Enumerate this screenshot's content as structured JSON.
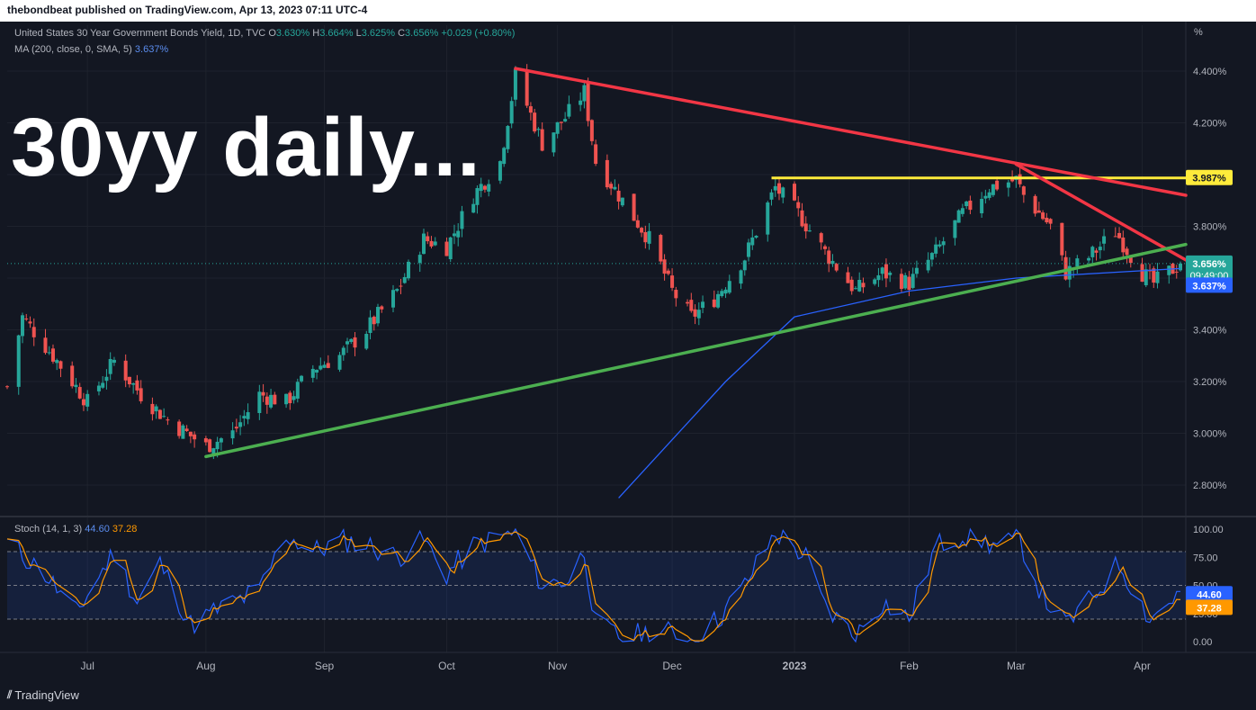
{
  "header": {
    "published_text": "thebondbeat published on TradingView.com, Apr 13, 2023 07:11 UTC-4"
  },
  "footer": {
    "brand": "TradingView"
  },
  "title_overlay": "30yy daily...",
  "legend": {
    "symbol": "United States 30 Year Government Bonds Yield, 1D, TVC",
    "open_label": "O",
    "open": "3.630%",
    "high_label": "H",
    "high": "3.664%",
    "low_label": "L",
    "low": "3.625%",
    "close_label": "C",
    "close": "3.656%",
    "change": "+0.029 (+0.80%)",
    "ma_label": "MA (200, close, 0, SMA, 5)",
    "ma_value": "3.637%",
    "stoch_label": "Stoch (14, 1, 3)",
    "stoch_k": "44.60",
    "stoch_d": "37.28"
  },
  "axis": {
    "unit": "%",
    "price_ticks": [
      "4.400%",
      "4.200%",
      "4.000%",
      "3.800%",
      "3.600%",
      "3.400%",
      "3.200%",
      "3.000%",
      "2.800%"
    ],
    "stoch_ticks": [
      "100.00",
      "75.00",
      "50.00",
      "25.00",
      "0.00"
    ],
    "month_labels": [
      "Jul",
      "Aug",
      "Sep",
      "Oct",
      "Nov",
      "Dec",
      "2023",
      "Feb",
      "Mar",
      "Apr"
    ]
  },
  "badges": {
    "resistance": "3.987%",
    "last_price": "3.656%",
    "countdown": "09:49:00",
    "ma": "3.637%",
    "stoch_k": "44.60",
    "stoch_d": "37.28"
  },
  "colors": {
    "background": "#131722",
    "up": "#26a69a",
    "down": "#ef5350",
    "ma": "#2962ff",
    "resistance_line": "#ffeb3b",
    "downtrend_line": "#f23645",
    "uptrend_line": "#4caf50",
    "stoch_k": "#2962ff",
    "stoch_d": "#ff9800"
  },
  "chart_data": [
    {
      "type": "candlestick",
      "title": "United States 30 Year Government Bonds Yield, 1D, TVC",
      "ylim": [
        2.75,
        4.5
      ],
      "y_unit": "%",
      "x_range": [
        "2022-06-10",
        "2023-04-13"
      ],
      "month_starts": [
        "2022-07-01",
        "2022-08-01",
        "2022-09-01",
        "2022-10-03",
        "2022-11-01",
        "2022-12-01",
        "2023-01-02",
        "2023-02-01",
        "2023-03-01",
        "2023-04-03"
      ],
      "path_anchors": [
        [
          "2022-06-10",
          3.18
        ],
        [
          "2022-06-14",
          3.45
        ],
        [
          "2022-06-22",
          3.3
        ],
        [
          "2022-07-01",
          3.12
        ],
        [
          "2022-07-08",
          3.28
        ],
        [
          "2022-07-15",
          3.15
        ],
        [
          "2022-07-22",
          3.05
        ],
        [
          "2022-07-29",
          2.98
        ],
        [
          "2022-08-01",
          2.95
        ],
        [
          "2022-08-08",
          3.0
        ],
        [
          "2022-08-15",
          3.15
        ],
        [
          "2022-08-22",
          3.12
        ],
        [
          "2022-08-29",
          3.25
        ],
        [
          "2022-09-05",
          3.3
        ],
        [
          "2022-09-12",
          3.4
        ],
        [
          "2022-09-20",
          3.55
        ],
        [
          "2022-09-27",
          3.75
        ],
        [
          "2022-10-03",
          3.72
        ],
        [
          "2022-10-10",
          3.92
        ],
        [
          "2022-10-17",
          4.05
        ],
        [
          "2022-10-21",
          4.38
        ],
        [
          "2022-10-28",
          4.12
        ],
        [
          "2022-11-03",
          4.22
        ],
        [
          "2022-11-08",
          4.32
        ],
        [
          "2022-11-11",
          4.05
        ],
        [
          "2022-11-18",
          3.9
        ],
        [
          "2022-11-25",
          3.75
        ],
        [
          "2022-12-01",
          3.55
        ],
        [
          "2022-12-06",
          3.45
        ],
        [
          "2022-12-12",
          3.52
        ],
        [
          "2022-12-20",
          3.68
        ],
        [
          "2022-12-28",
          3.95
        ],
        [
          "2023-01-03",
          3.85
        ],
        [
          "2023-01-10",
          3.7
        ],
        [
          "2023-01-18",
          3.55
        ],
        [
          "2023-01-25",
          3.62
        ],
        [
          "2023-02-01",
          3.58
        ],
        [
          "2023-02-08",
          3.7
        ],
        [
          "2023-02-15",
          3.85
        ],
        [
          "2023-02-22",
          3.95
        ],
        [
          "2023-03-01",
          3.98
        ],
        [
          "2023-03-03",
          3.92
        ],
        [
          "2023-03-10",
          3.8
        ],
        [
          "2023-03-14",
          3.62
        ],
        [
          "2023-03-20",
          3.68
        ],
        [
          "2023-03-27",
          3.78
        ],
        [
          "2023-04-03",
          3.62
        ],
        [
          "2023-04-06",
          3.58
        ],
        [
          "2023-04-13",
          3.656
        ]
      ],
      "last": {
        "open": 3.63,
        "high": 3.664,
        "low": 3.625,
        "close": 3.656,
        "change": 0.029,
        "change_pct": 0.8
      },
      "moving_average": {
        "name": "MA (200, close, 0, SMA, 5)",
        "anchors": [
          [
            "2022-11-17",
            2.75
          ],
          [
            "2022-12-15",
            3.2
          ],
          [
            "2023-01-02",
            3.45
          ],
          [
            "2023-02-01",
            3.55
          ],
          [
            "2023-03-01",
            3.6
          ],
          [
            "2023-04-13",
            3.637
          ]
        ],
        "last": 3.637
      },
      "annotations": [
        {
          "kind": "hline",
          "color": "#ffeb3b",
          "y": 3.987,
          "from": "2022-12-27",
          "to": "2023-03-06"
        },
        {
          "kind": "trendline",
          "color": "#f23645",
          "points": [
            [
              "2022-10-21",
              4.41
            ],
            [
              "2023-04-13",
              3.92
            ]
          ]
        },
        {
          "kind": "trendline",
          "color": "#f23645",
          "points": [
            [
              "2023-03-01",
              4.04
            ],
            [
              "2023-04-13",
              3.67
            ]
          ]
        },
        {
          "kind": "trendline",
          "color": "#4caf50",
          "points": [
            [
              "2022-08-01",
              2.91
            ],
            [
              "2023-04-13",
              3.73
            ]
          ]
        }
      ]
    },
    {
      "type": "line",
      "title": "Stoch (14, 1, 3)",
      "ylim": [
        0,
        100
      ],
      "band": [
        20,
        80
      ],
      "midline": 50,
      "k_anchors": [
        [
          "2022-06-10",
          88
        ],
        [
          "2022-06-20",
          60
        ],
        [
          "2022-06-28",
          25
        ],
        [
          "2022-07-08",
          80
        ],
        [
          "2022-07-14",
          35
        ],
        [
          "2022-07-20",
          70
        ],
        [
          "2022-07-28",
          15
        ],
        [
          "2022-08-05",
          30
        ],
        [
          "2022-08-15",
          45
        ],
        [
          "2022-08-22",
          95
        ],
        [
          "2022-08-29",
          80
        ],
        [
          "2022-09-06",
          90
        ],
        [
          "2022-09-13",
          85
        ],
        [
          "2022-09-20",
          75
        ],
        [
          "2022-09-27",
          90
        ],
        [
          "2022-10-03",
          60
        ],
        [
          "2022-10-10",
          85
        ],
        [
          "2022-10-21",
          97
        ],
        [
          "2022-10-28",
          50
        ],
        [
          "2022-11-04",
          55
        ],
        [
          "2022-11-08",
          80
        ],
        [
          "2022-11-11",
          15
        ],
        [
          "2022-11-18",
          3
        ],
        [
          "2022-11-28",
          10
        ],
        [
          "2022-12-06",
          2
        ],
        [
          "2022-12-13",
          20
        ],
        [
          "2022-12-20",
          50
        ],
        [
          "2022-12-28",
          97
        ],
        [
          "2023-01-05",
          75
        ],
        [
          "2023-01-10",
          30
        ],
        [
          "2023-01-18",
          5
        ],
        [
          "2023-01-25",
          35
        ],
        [
          "2023-02-01",
          20
        ],
        [
          "2023-02-08",
          85
        ],
        [
          "2023-02-15",
          95
        ],
        [
          "2023-02-24",
          85
        ],
        [
          "2023-03-02",
          90
        ],
        [
          "2023-03-08",
          40
        ],
        [
          "2023-03-14",
          15
        ],
        [
          "2023-03-20",
          35
        ],
        [
          "2023-03-28",
          70
        ],
        [
          "2023-04-05",
          20
        ],
        [
          "2023-04-13",
          44.6
        ]
      ],
      "d_last": 37.28,
      "k_last": 44.6
    }
  ]
}
